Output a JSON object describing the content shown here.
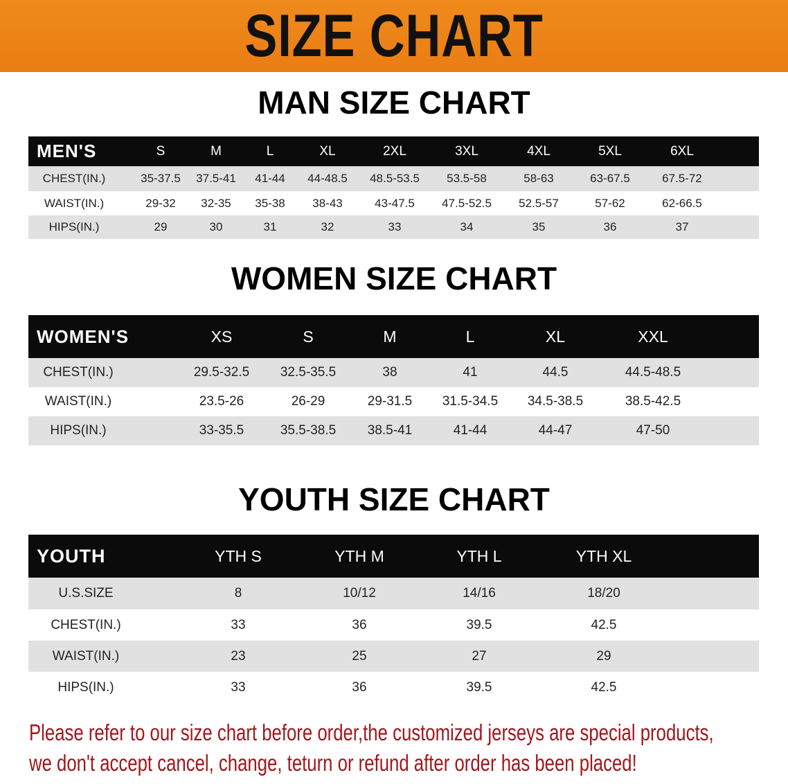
{
  "banner": {
    "title": "SIZE CHART",
    "color": "#f08a1c"
  },
  "men": {
    "title": "MAN SIZE CHART",
    "header": [
      "MEN'S",
      "S",
      "M",
      "L",
      "XL",
      "2XL",
      "3XL",
      "4XL",
      "5XL",
      "6XL"
    ],
    "rows": [
      [
        "CHEST(IN.)",
        "35-37.5",
        "37.5-41",
        "41-44",
        "44-48.5",
        "48.5-53.5",
        "53.5-58",
        "58-63",
        "63-67.5",
        "67.5-72"
      ],
      [
        "WAIST(IN.)",
        "29-32",
        "32-35",
        "35-38",
        "38-43",
        "43-47.5",
        "47.5-52.5",
        "52.5-57",
        "57-62",
        "62-66.5"
      ],
      [
        "HIPS(IN.)",
        "29",
        "30",
        "31",
        "32",
        "33",
        "34",
        "35",
        "36",
        "37"
      ]
    ]
  },
  "women": {
    "title": "WOMEN SIZE CHART",
    "header": [
      "WOMEN'S",
      "XS",
      "S",
      "M",
      "L",
      "XL",
      "XXL"
    ],
    "rows": [
      [
        "CHEST(IN.)",
        "29.5-32.5",
        "32.5-35.5",
        "38",
        "41",
        "44.5",
        "44.5-48.5"
      ],
      [
        "WAIST(IN.)",
        "23.5-26",
        "26-29",
        "29-31.5",
        "31.5-34.5",
        "34.5-38.5",
        "38.5-42.5"
      ],
      [
        "HIPS(IN.)",
        "33-35.5",
        "35.5-38.5",
        "38.5-41",
        "41-44",
        "44-47",
        "47-50"
      ]
    ]
  },
  "youth": {
    "title": "YOUTH SIZE CHART",
    "header": [
      "YOUTH",
      "YTH S",
      "YTH M",
      "YTH L",
      "YTH XL"
    ],
    "rows": [
      [
        "U.S.SIZE",
        "8",
        "10/12",
        "14/16",
        "18/20"
      ],
      [
        "CHEST(IN.)",
        "33",
        "36",
        "39.5",
        "42.5"
      ],
      [
        "WAIST(IN.)",
        "23",
        "25",
        "27",
        "29"
      ],
      [
        "HIPS(IN.)",
        "33",
        "36",
        "39.5",
        "42.5"
      ]
    ]
  },
  "notice": {
    "line1": "Please refer to our size chart before order,the customized jerseys are special products,",
    "line2": "we don't accept cancel, change, teturn or refund after order has been placed!",
    "color": "#a3161b"
  }
}
